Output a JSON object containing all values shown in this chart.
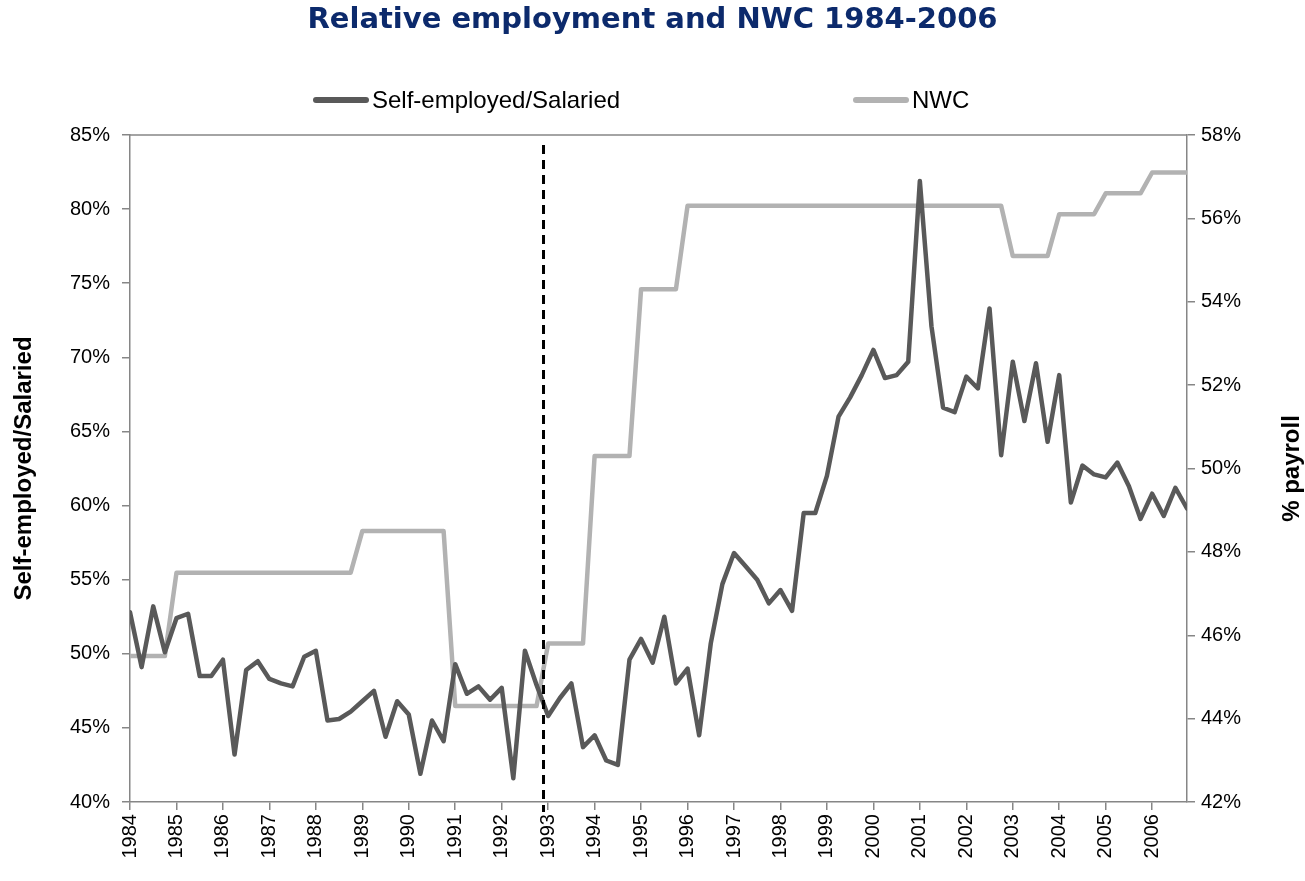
{
  "chart_data": {
    "type": "line",
    "title": "Relative employment and NWC 1984-2006",
    "ylabel": "Self-employed/Salaried",
    "y2label": "% payroll",
    "x": [
      1984,
      1984.25,
      1984.5,
      1984.75,
      1985,
      1985.25,
      1985.5,
      1985.75,
      1986,
      1986.25,
      1986.5,
      1986.75,
      1987,
      1987.25,
      1987.5,
      1987.75,
      1988,
      1988.25,
      1988.5,
      1988.75,
      1989,
      1989.25,
      1989.5,
      1989.75,
      1990,
      1990.25,
      1990.5,
      1990.75,
      1991,
      1991.25,
      1991.5,
      1991.75,
      1992,
      1992.25,
      1992.5,
      1992.75,
      1993,
      1993.25,
      1993.5,
      1993.75,
      1994,
      1994.25,
      1994.5,
      1994.75,
      1995,
      1995.25,
      1995.5,
      1995.75,
      1996,
      1996.25,
      1996.5,
      1996.75,
      1997,
      1997.25,
      1997.5,
      1997.75,
      1998,
      1998.25,
      1998.5,
      1998.75,
      1999,
      1999.25,
      1999.5,
      1999.75,
      2000,
      2000.25,
      2000.5,
      2000.75,
      2001,
      2001.25,
      2001.5,
      2001.75,
      2002,
      2002.25,
      2002.5,
      2002.75,
      2003,
      2003.25,
      2003.5,
      2003.75,
      2004,
      2004.25,
      2004.5,
      2004.75,
      2005,
      2005.25,
      2005.5,
      2005.75,
      2006,
      2006.25,
      2006.5,
      2006.75
    ],
    "series": [
      {
        "name": "Self-employed/Salaried",
        "color": "#595959",
        "values": [
          52.8,
          49.1,
          53.2,
          50.1,
          52.4,
          52.7,
          48.5,
          48.5,
          49.6,
          43.2,
          48.9,
          49.5,
          48.3,
          48.0,
          47.8,
          49.8,
          50.2,
          45.5,
          45.6,
          46.1,
          46.8,
          47.5,
          44.4,
          46.8,
          45.9,
          41.9,
          45.5,
          44.1,
          49.3,
          47.3,
          47.8,
          46.9,
          47.7,
          41.6,
          50.2,
          47.9,
          45.8,
          47.0,
          48.0,
          43.7,
          44.5,
          42.8,
          42.5,
          49.6,
          51.0,
          49.4,
          52.5,
          48.0,
          49.0,
          44.5,
          50.7,
          54.7,
          56.8,
          55.9,
          55.0,
          53.4,
          54.3,
          52.9,
          59.5,
          59.5,
          62.0,
          66.0,
          67.3,
          68.8,
          70.5,
          68.6,
          68.8,
          69.7,
          81.9,
          72.1,
          66.6,
          66.3,
          68.7,
          67.9,
          73.3,
          63.4,
          69.7,
          65.7,
          69.6,
          64.3,
          68.8,
          60.2,
          62.7,
          62.1,
          61.9,
          62.9,
          61.3,
          59.1,
          60.8,
          59.3,
          61.2,
          59.8
        ]
      },
      {
        "name": "NWC",
        "color": "#b2b2b2",
        "axis": "y2",
        "values": [
          45.5,
          45.5,
          45.5,
          45.5,
          47.5,
          47.5,
          47.5,
          47.5,
          47.5,
          47.5,
          47.5,
          47.5,
          47.5,
          47.5,
          47.5,
          47.5,
          47.5,
          47.5,
          47.5,
          47.5,
          48.5,
          48.5,
          48.5,
          48.5,
          48.5,
          48.5,
          48.5,
          48.5,
          44.3,
          44.3,
          44.3,
          44.3,
          44.3,
          44.3,
          44.3,
          44.3,
          45.8,
          45.8,
          45.8,
          45.8,
          50.3,
          50.3,
          50.3,
          50.3,
          54.3,
          54.3,
          54.3,
          54.3,
          56.3,
          56.3,
          56.3,
          56.3,
          56.3,
          56.3,
          56.3,
          56.3,
          56.3,
          56.3,
          56.3,
          56.3,
          56.3,
          56.3,
          56.3,
          56.3,
          56.3,
          56.3,
          56.3,
          56.3,
          56.3,
          56.3,
          56.3,
          56.3,
          56.3,
          56.3,
          56.3,
          56.3,
          55.1,
          55.1,
          55.1,
          55.1,
          56.1,
          56.1,
          56.1,
          56.1,
          56.6,
          56.6,
          56.6,
          56.6,
          57.1,
          57.1,
          57.1,
          57.1
        ]
      }
    ],
    "xlim": [
      1984,
      2006.75
    ],
    "xticks": [
      1984,
      1985,
      1986,
      1987,
      1988,
      1989,
      1990,
      1991,
      1992,
      1993,
      1994,
      1995,
      1996,
      1997,
      1998,
      1999,
      2000,
      2001,
      2002,
      2003,
      2004,
      2005,
      2006
    ],
    "ylim": [
      40,
      85
    ],
    "yticks": [
      {
        "value": 40,
        "label": "40%"
      },
      {
        "value": 45,
        "label": "45%"
      },
      {
        "value": 50,
        "label": "50%"
      },
      {
        "value": 55,
        "label": "55%"
      },
      {
        "value": 60,
        "label": "60%"
      },
      {
        "value": 65,
        "label": "65%"
      },
      {
        "value": 70,
        "label": "70%"
      },
      {
        "value": 75,
        "label": "75%"
      },
      {
        "value": 80,
        "label": "80%"
      },
      {
        "value": 85,
        "label": "85%"
      }
    ],
    "y2lim": [
      42,
      58
    ],
    "y2ticks": [
      {
        "value": 42,
        "label": "42%"
      },
      {
        "value": 44,
        "label": "44%"
      },
      {
        "value": 46,
        "label": "46%"
      },
      {
        "value": 48,
        "label": "48%"
      },
      {
        "value": 50,
        "label": "50%"
      },
      {
        "value": 52,
        "label": "52%"
      },
      {
        "value": 54,
        "label": "54%"
      },
      {
        "value": 56,
        "label": "56%"
      },
      {
        "value": 58,
        "label": "58%"
      }
    ],
    "ref_lines": [
      {
        "axis": "x",
        "value": 1992.9,
        "color": "#000000",
        "line_style": "dashed"
      }
    ],
    "legend": "top",
    "marker": "none",
    "line_style": "solid"
  }
}
